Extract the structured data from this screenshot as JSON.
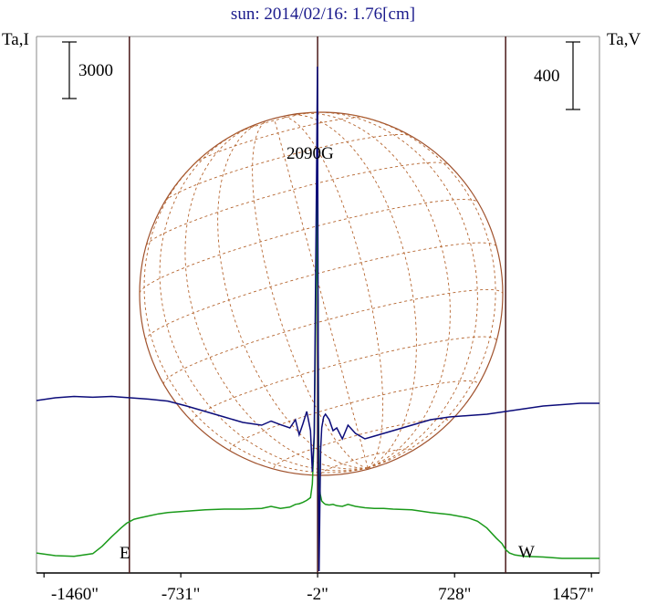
{
  "chart_data": {
    "type": "line",
    "title": "sun: 2014/02/16: 1.76[cm]",
    "left_axis_label": "Ta,I",
    "right_axis_label": "Ta,V",
    "left_scale_label": "3000",
    "right_scale_label": "400",
    "peak_label": "2090G",
    "east_label": "E",
    "west_label": "W",
    "x_tick_labels": [
      "-1460\"",
      "-731\"",
      "-2\"",
      "728\"",
      "1457\""
    ],
    "x_tick_values": [
      -1460,
      -731,
      -2,
      728,
      1457
    ],
    "xlim": [
      -1500,
      1500
    ],
    "vertical_markers": [
      -1005,
      -2,
      1000
    ],
    "solar_disk": {
      "center_x": -2,
      "radius_arcsec": 985,
      "grid": "heliographic"
    },
    "series": [
      {
        "key": "stokes_i",
        "color": "#1a9a1a",
        "x": [
          -1500,
          -1400,
          -1300,
          -1200,
          -1150,
          -1100,
          -1050,
          -1020,
          -1000,
          -980,
          -950,
          -900,
          -850,
          -800,
          -700,
          -600,
          -500,
          -400,
          -300,
          -250,
          -200,
          -150,
          -120,
          -100,
          -80,
          -60,
          -40,
          -30,
          -20,
          -12,
          -6,
          -3,
          0,
          3,
          6,
          12,
          20,
          30,
          40,
          60,
          80,
          100,
          130,
          160,
          200,
          250,
          300,
          350,
          400,
          500,
          600,
          700,
          800,
          850,
          900,
          950,
          980,
          1000,
          1020,
          1050,
          1100,
          1200,
          1300,
          1400,
          1500
        ],
        "y": [
          0.08,
          0.04,
          0.03,
          0.07,
          0.18,
          0.32,
          0.45,
          0.52,
          0.55,
          0.58,
          0.6,
          0.63,
          0.66,
          0.68,
          0.7,
          0.72,
          0.73,
          0.73,
          0.74,
          0.77,
          0.74,
          0.76,
          0.8,
          0.81,
          0.83,
          0.86,
          0.9,
          1.1,
          1.8,
          3.5,
          5.3,
          4.2,
          3.8,
          2.1,
          1.2,
          0.95,
          0.85,
          0.82,
          0.8,
          0.79,
          0.8,
          0.78,
          0.77,
          0.8,
          0.77,
          0.75,
          0.74,
          0.74,
          0.73,
          0.72,
          0.68,
          0.65,
          0.6,
          0.55,
          0.45,
          0.3,
          0.22,
          0.13,
          0.08,
          0.05,
          0.03,
          0.02,
          0.0,
          0.0,
          0.0
        ]
      },
      {
        "key": "stokes_v",
        "color": "#0c0c7a",
        "x": [
          -1500,
          -1400,
          -1300,
          -1200,
          -1100,
          -1000,
          -900,
          -800,
          -700,
          -600,
          -500,
          -400,
          -300,
          -250,
          -200,
          -150,
          -120,
          -100,
          -80,
          -60,
          -40,
          -30,
          -20,
          -14,
          -10,
          -6,
          -3,
          0,
          3,
          6,
          10,
          14,
          20,
          30,
          40,
          60,
          80,
          100,
          130,
          160,
          200,
          250,
          300,
          350,
          400,
          500,
          600,
          700,
          800,
          900,
          1000,
          1100,
          1200,
          1300,
          1400,
          1500
        ],
        "y": [
          80,
          90,
          95,
          92,
          95,
          90,
          85,
          78,
          60,
          40,
          20,
          0,
          -10,
          5,
          -8,
          -20,
          10,
          -45,
          -5,
          40,
          -30,
          -180,
          -40,
          420,
          700,
          1050,
          1300,
          600,
          -200,
          -700,
          -300,
          -100,
          -20,
          20,
          30,
          10,
          -30,
          -20,
          -60,
          -10,
          -40,
          -60,
          -50,
          -40,
          -30,
          -10,
          10,
          20,
          25,
          30,
          40,
          50,
          60,
          65,
          70,
          70
        ]
      }
    ]
  }
}
